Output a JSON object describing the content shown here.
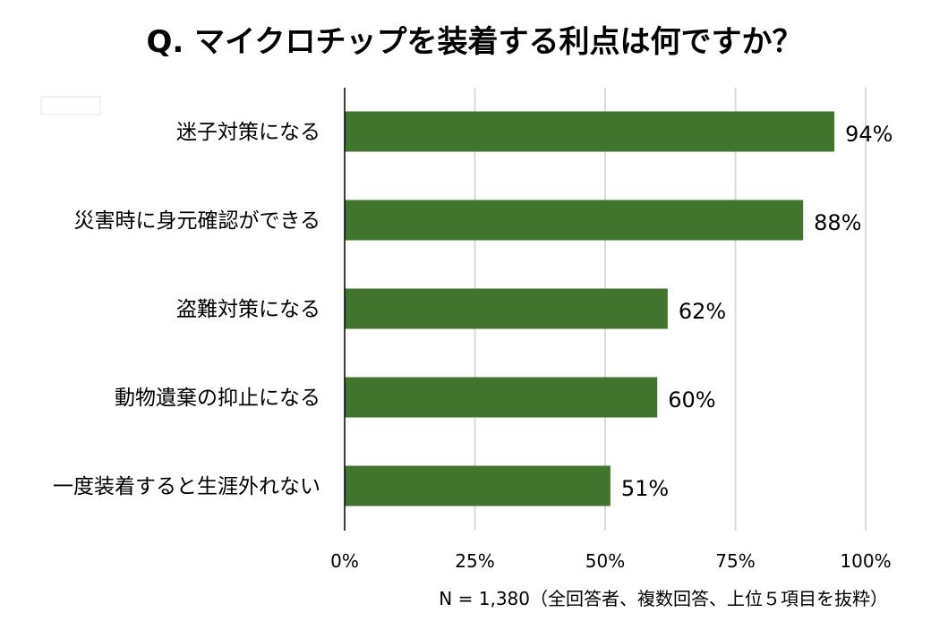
{
  "chart_data": {
    "type": "bar",
    "orientation": "horizontal",
    "title": "Q. マイクロチップを装着する利点は何ですか？",
    "categories": [
      "迷子対策になる",
      "災害時に身元確認ができる",
      "盗難対策になる",
      "動物遺棄の抑止になる",
      "一度装着すると生涯外れない"
    ],
    "values": [
      94,
      88,
      62,
      60,
      51
    ],
    "value_labels": [
      "94%",
      "88%",
      "62%",
      "60%",
      "51%"
    ],
    "xlim": [
      0,
      100
    ],
    "x_ticks": [
      0,
      25,
      50,
      75,
      100
    ],
    "x_tick_labels": [
      "0%",
      "25%",
      "50%",
      "75%",
      "100%"
    ],
    "grid": "vertical",
    "bar_color": "#41742c",
    "grid_color": "#d9d9d9",
    "note": "N = 1,380（全回答者、複数回答、上位５項目を抜粋）"
  }
}
